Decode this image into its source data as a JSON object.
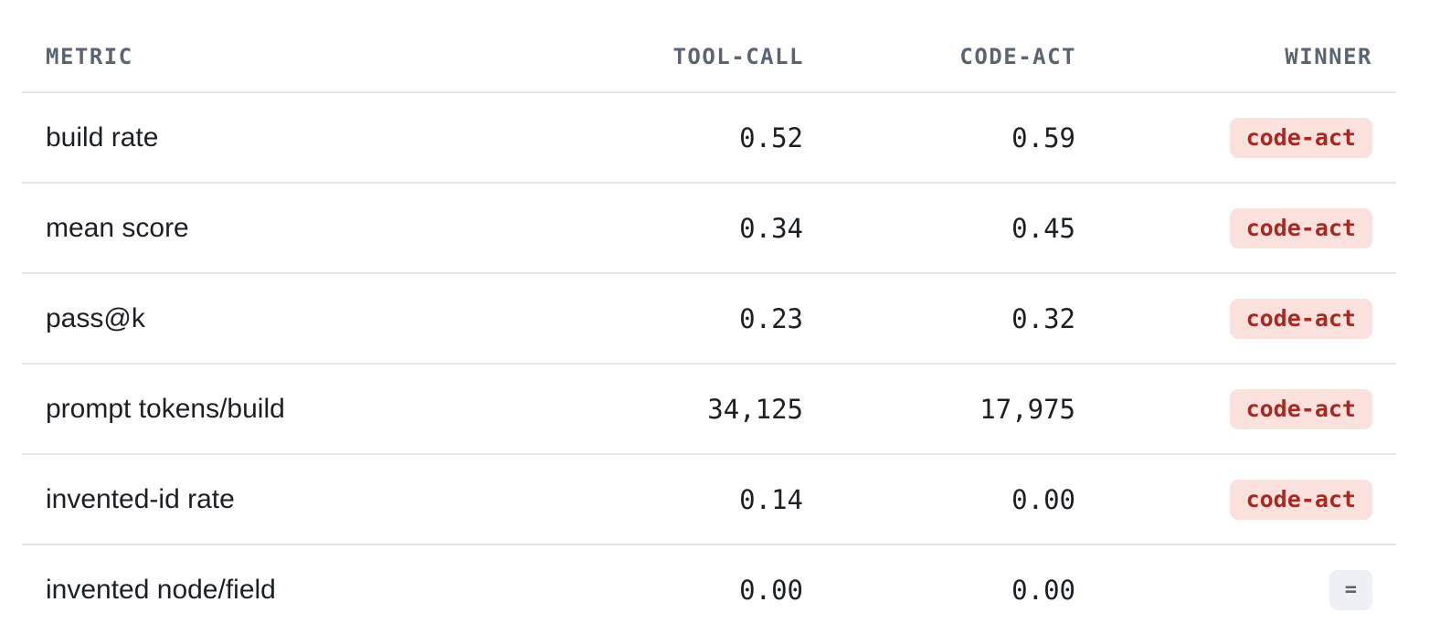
{
  "table": {
    "headers": {
      "metric": "METRIC",
      "tool_call": "TOOL-CALL",
      "code_act": "CODE-ACT",
      "winner": "WINNER"
    },
    "rows": [
      {
        "metric": "build rate",
        "tool_call": "0.52",
        "code_act": "0.59",
        "winner": "code-act"
      },
      {
        "metric": "mean score",
        "tool_call": "0.34",
        "code_act": "0.45",
        "winner": "code-act"
      },
      {
        "metric": "pass@k",
        "tool_call": "0.23",
        "code_act": "0.32",
        "winner": "code-act"
      },
      {
        "metric": "prompt tokens/build",
        "tool_call": "34,125",
        "code_act": "17,975",
        "winner": "code-act"
      },
      {
        "metric": "invented-id rate",
        "tool_call": "0.14",
        "code_act": "0.00",
        "winner": "code-act"
      },
      {
        "metric": "invented node/field",
        "tool_call": "0.00",
        "code_act": "0.00",
        "winner": "="
      }
    ]
  },
  "colors": {
    "winner_badge_bg": "#fbe1dd",
    "winner_badge_text": "#a52a23",
    "tie_badge_bg": "#eef0f3",
    "tie_badge_text": "#5b6472"
  }
}
